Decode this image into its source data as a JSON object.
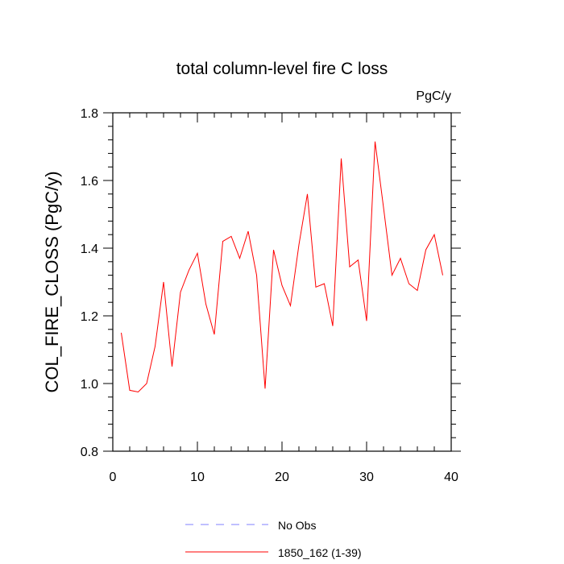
{
  "chart_data": {
    "type": "line",
    "title": "total column-level fire C loss",
    "units_label": "PgC/y",
    "ylabel": "COL_FIRE_CLOSS  (PgC/y)",
    "xlabel": "",
    "xlim": [
      0,
      40
    ],
    "ylim": [
      0.8,
      1.8
    ],
    "xticks": [
      0,
      10,
      20,
      30,
      40
    ],
    "yticks": [
      0.8,
      1.0,
      1.2,
      1.4,
      1.6,
      1.8
    ],
    "ytick_labels": [
      "0.8",
      "1.0",
      "1.2",
      "1.4",
      "1.6",
      "1.8"
    ],
    "series": [
      {
        "name": "1850_162 (1-39)",
        "color": "#ff0000",
        "style": "solid",
        "x": [
          1,
          2,
          3,
          4,
          5,
          6,
          7,
          8,
          9,
          10,
          11,
          12,
          13,
          14,
          15,
          16,
          17,
          18,
          19,
          20,
          21,
          22,
          23,
          24,
          25,
          26,
          27,
          28,
          29,
          30,
          31,
          32,
          33,
          34,
          35,
          36,
          37,
          38,
          39
        ],
        "values": [
          1.15,
          0.98,
          0.975,
          1.0,
          1.11,
          1.3,
          1.05,
          1.27,
          1.335,
          1.385,
          1.235,
          1.145,
          1.42,
          1.435,
          1.37,
          1.45,
          1.32,
          0.985,
          1.395,
          1.29,
          1.23,
          1.41,
          1.56,
          1.285,
          1.295,
          1.17,
          1.665,
          1.345,
          1.365,
          1.185,
          1.715,
          1.52,
          1.32,
          1.37,
          1.295,
          1.275,
          1.395,
          1.44,
          1.32
        ]
      }
    ],
    "legend": [
      {
        "label": "No Obs",
        "color": "#8080ff",
        "style": "dashed"
      },
      {
        "label": "1850_162 (1-39)",
        "color": "#ff0000",
        "style": "solid"
      }
    ],
    "legend_position": "bottom"
  }
}
